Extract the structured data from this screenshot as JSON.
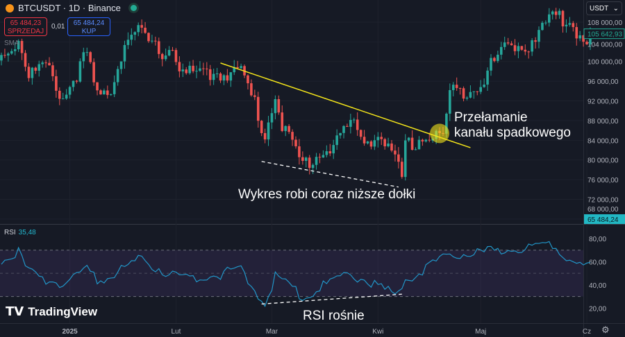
{
  "header": {
    "symbol": "BTCUSDT · 1D · Binance",
    "sell_price": "65 484,23",
    "sell_label": "SPRZEDAJ",
    "spread": "0,01",
    "buy_price": "65 484,24",
    "buy_label": "KUP",
    "indicator": "SMA",
    "currency": "USDT"
  },
  "annotations": {
    "breakout": [
      "Przełamanie",
      "kanału spadkowego"
    ],
    "lows": "Wykres robi coraz niższe dołki",
    "rsi": "RSI rośnie"
  },
  "rsi": {
    "label": "RSI",
    "value": "35,48"
  },
  "logo": "TradingView",
  "colors": {
    "up": "#26a69a",
    "down": "#ef5350",
    "trendline": "#f5e61a",
    "rsi": "#2196c8",
    "band": "#7e57c2"
  },
  "chart_data": {
    "type": "candlestick",
    "price_axis": {
      "ticks": [
        "108 000,00",
        "104 000,00",
        "100 000,00",
        "96 000,00",
        "92 000,00",
        "88 000,00",
        "84 000,00",
        "80 000,00",
        "76 000,00",
        "72 000,00",
        "68 000,00"
      ],
      "range": [
        67000,
        112500
      ]
    },
    "last_price_label": "105 642,93",
    "bid_label": "65 484,24",
    "time_axis": [
      {
        "label": "2025",
        "date": "2025-01-01"
      },
      {
        "label": "Lut",
        "date": "2025-02-01"
      },
      {
        "label": "Mar",
        "date": "2025-03-01"
      },
      {
        "label": "Kwi",
        "date": "2025-04-01"
      },
      {
        "label": "Maj",
        "date": "2025-05-01"
      },
      {
        "label": "Cz",
        "date": "2025-06-01"
      }
    ],
    "close_keypoints": [
      [
        "2024-12-12",
        101000
      ],
      [
        "2024-12-17",
        104500
      ],
      [
        "2024-12-20",
        97500
      ],
      [
        "2024-12-25",
        99000
      ],
      [
        "2024-12-30",
        92500
      ],
      [
        "2025-01-06",
        101500
      ],
      [
        "2025-01-09",
        92500
      ],
      [
        "2025-01-13",
        94500
      ],
      [
        "2025-01-17",
        104000
      ],
      [
        "2025-01-21",
        106000
      ],
      [
        "2025-01-27",
        102000
      ],
      [
        "2025-01-31",
        102500
      ],
      [
        "2025-02-03",
        97500
      ],
      [
        "2025-02-10",
        97500
      ],
      [
        "2025-02-20",
        98000
      ],
      [
        "2025-02-24",
        91500
      ],
      [
        "2025-02-27",
        84500
      ],
      [
        "2025-03-02",
        94000
      ],
      [
        "2025-03-04",
        87000
      ],
      [
        "2025-03-10",
        79000
      ],
      [
        "2025-03-18",
        82500
      ],
      [
        "2025-03-24",
        87500
      ],
      [
        "2025-03-28",
        84000
      ],
      [
        "2025-04-02",
        85000
      ],
      [
        "2025-04-07",
        78000
      ],
      [
        "2025-04-08",
        76500
      ],
      [
        "2025-04-09",
        82500
      ],
      [
        "2025-04-14",
        84500
      ],
      [
        "2025-04-20",
        85000
      ],
      [
        "2025-04-22",
        93500
      ],
      [
        "2025-04-30",
        95000
      ],
      [
        "2025-05-08",
        103000
      ],
      [
        "2025-05-15",
        103500
      ],
      [
        "2025-05-22",
        109500
      ],
      [
        "2025-05-27",
        108000
      ],
      [
        "2025-05-31",
        104500
      ],
      [
        "2025-06-02",
        105643
      ]
    ],
    "trendline": [
      [
        "2025-02-14",
        99700
      ],
      [
        "2025-04-28",
        82500
      ]
    ],
    "lows_line": [
      [
        "2025-02-26",
        79700
      ],
      [
        "2025-04-07",
        74500
      ]
    ],
    "breakout_point": [
      "2025-04-19",
      85400
    ],
    "rsi_axis": {
      "ticks": [
        "80,00",
        "60,00",
        "40,00",
        "20,00"
      ],
      "range": [
        7,
        92
      ],
      "band": [
        30,
        70
      ]
    },
    "rsi_keypoints": [
      [
        "2024-12-12",
        60
      ],
      [
        "2024-12-17",
        68
      ],
      [
        "2024-12-20",
        50
      ],
      [
        "2024-12-30",
        40
      ],
      [
        "2025-01-06",
        55
      ],
      [
        "2025-01-09",
        42
      ],
      [
        "2025-01-21",
        62
      ],
      [
        "2025-02-03",
        45
      ],
      [
        "2025-02-20",
        52
      ],
      [
        "2025-02-24",
        35
      ],
      [
        "2025-02-27",
        23
      ],
      [
        "2025-03-02",
        48
      ],
      [
        "2025-03-10",
        30
      ],
      [
        "2025-03-24",
        50
      ],
      [
        "2025-04-07",
        30
      ],
      [
        "2025-04-09",
        45
      ],
      [
        "2025-04-22",
        65
      ],
      [
        "2025-05-08",
        70
      ],
      [
        "2025-05-22",
        76
      ],
      [
        "2025-05-28",
        60
      ],
      [
        "2025-06-02",
        55
      ]
    ],
    "rsi_line": [
      [
        "2025-02-26",
        23.5
      ],
      [
        "2025-04-08",
        32
      ]
    ]
  }
}
